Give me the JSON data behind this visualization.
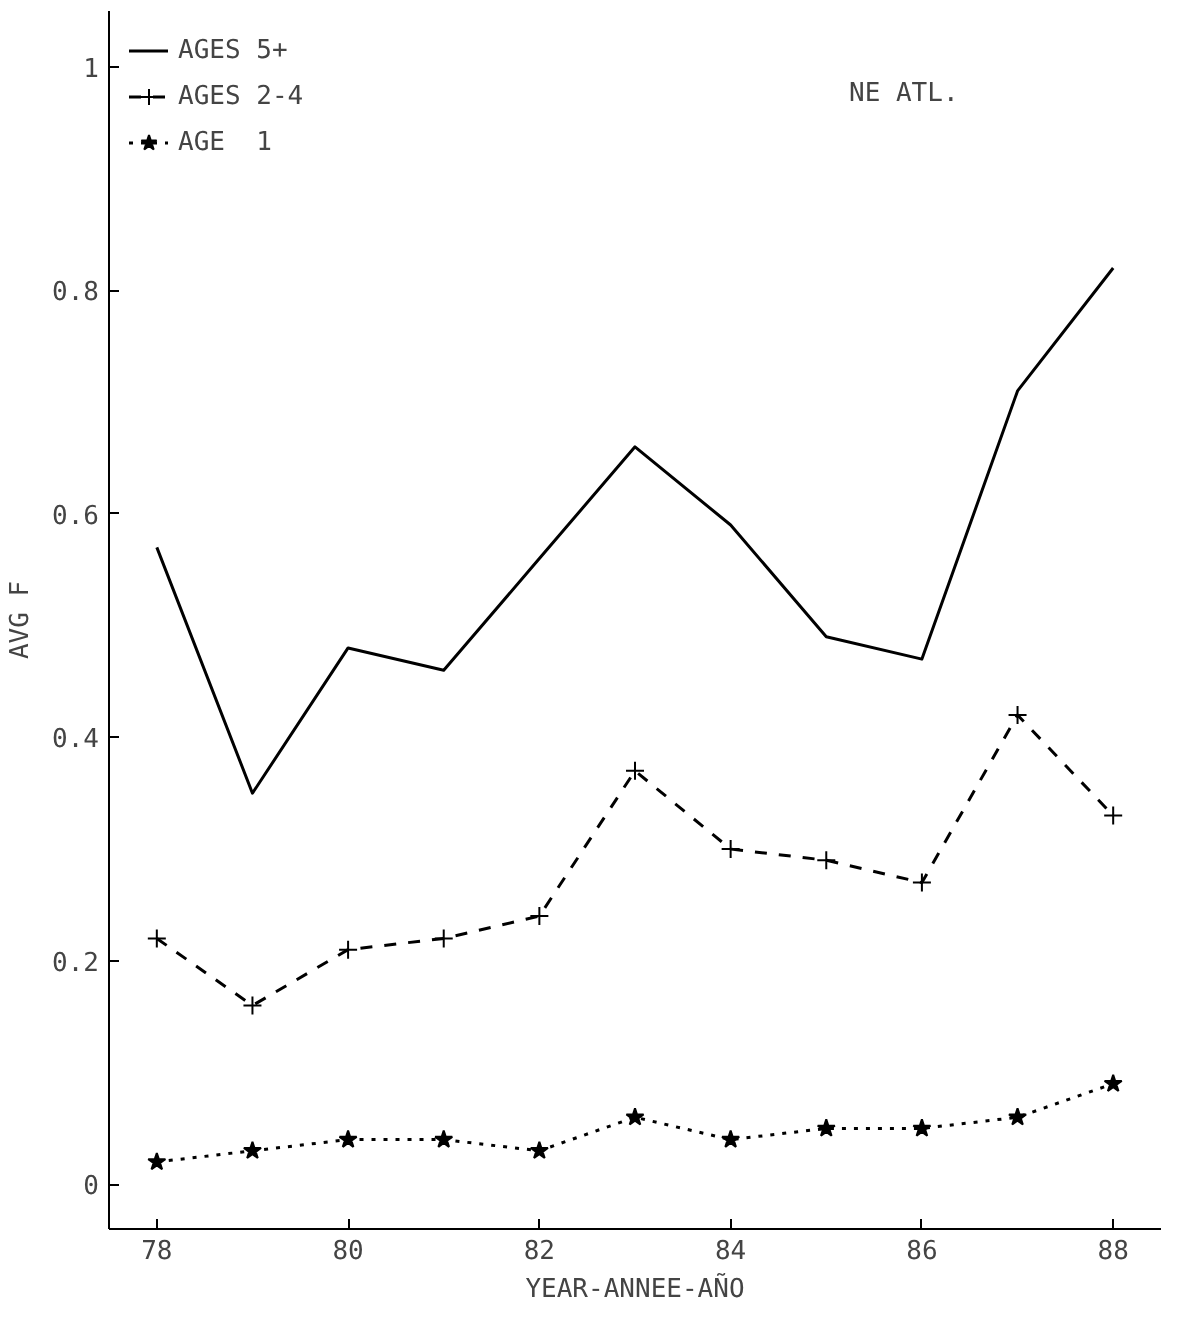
{
  "chart_data": {
    "type": "line",
    "x": [
      78,
      79,
      80,
      81,
      82,
      83,
      84,
      85,
      86,
      87,
      88
    ],
    "xlabel": "YEAR-ANNEE-AÑO",
    "ylabel": "AVG F",
    "xlim": [
      77.5,
      88.5
    ],
    "ylim": [
      -0.04,
      1.05
    ],
    "xticks": [
      78,
      80,
      82,
      84,
      86,
      88
    ],
    "yticks": [
      0,
      0.2,
      0.4,
      0.6,
      0.8,
      1
    ],
    "grid": false,
    "legend": "top left",
    "annotations": [
      "NE ATL."
    ],
    "series": [
      {
        "name": "AGES 5+",
        "color": "#000000",
        "marker": "none",
        "line_style": "solid",
        "values": [
          0.57,
          0.35,
          0.48,
          0.46,
          0.56,
          0.66,
          0.59,
          0.49,
          0.47,
          0.71,
          0.82
        ]
      },
      {
        "name": "AGES 2-4",
        "color": "#000000",
        "marker": "cross",
        "line_style": "dashed",
        "values": [
          0.22,
          0.16,
          0.21,
          0.22,
          0.24,
          0.37,
          0.3,
          0.29,
          0.27,
          0.42,
          0.33
        ]
      },
      {
        "name": "AGE  1",
        "color": "#000000",
        "marker": "star",
        "line_style": "dotted",
        "values": [
          0.02,
          0.03,
          0.04,
          0.04,
          0.03,
          0.06,
          0.04,
          0.05,
          0.05,
          0.06,
          0.09
        ]
      }
    ]
  }
}
